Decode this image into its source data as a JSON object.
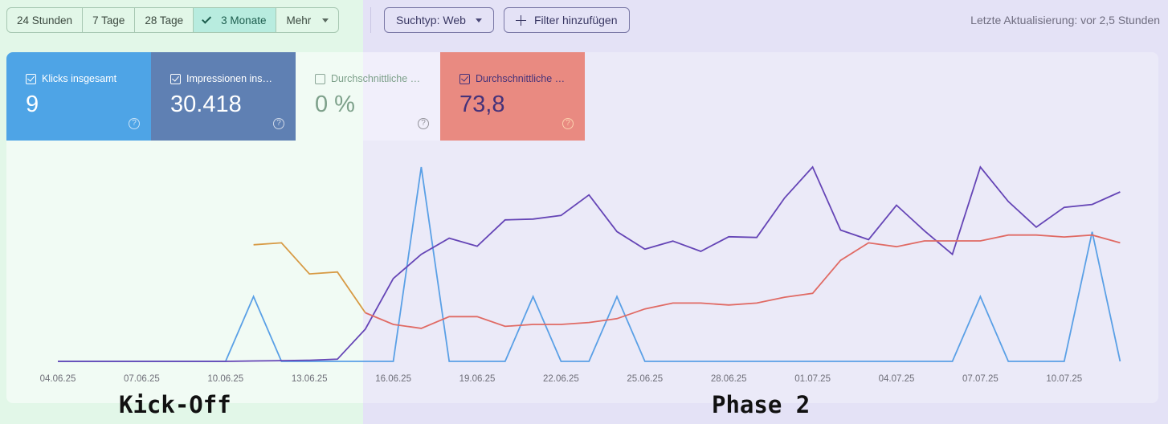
{
  "toolbar": {
    "ranges": [
      {
        "label": "24 Stunden",
        "active": false
      },
      {
        "label": "7 Tage",
        "active": false
      },
      {
        "label": "28 Tage",
        "active": false
      },
      {
        "label": "3 Monate",
        "active": true
      },
      {
        "label": "Mehr",
        "active": false
      }
    ],
    "search_type_label": "Suchtyp: Web",
    "add_filter_label": "Filter hinzufügen",
    "last_update": "Letzte Aktualisierung: vor 2,5 Stunden"
  },
  "metrics": [
    {
      "label": "Klicks insgesamt",
      "value": "9",
      "checked": true,
      "color": "#4ea4e6"
    },
    {
      "label": "Impressionen ins…",
      "value": "30.418",
      "checked": true,
      "color": "#5f80b3"
    },
    {
      "label": "Durchschnittliche …",
      "value": "0 %",
      "checked": false,
      "color": "#eaf8f0"
    },
    {
      "label": "Durchschnittliche …",
      "value": "73,8",
      "checked": true,
      "color": "#e98a81"
    }
  ],
  "phases": {
    "kickoff": "Kick-Off",
    "phase2": "Phase 2"
  },
  "chart_data": {
    "type": "line",
    "x": [
      "04.06.25",
      "05.06.25",
      "06.06.25",
      "07.06.25",
      "08.06.25",
      "09.06.25",
      "10.06.25",
      "11.06.25",
      "12.06.25",
      "13.06.25",
      "14.06.25",
      "15.06.25",
      "16.06.25",
      "17.06.25",
      "18.06.25",
      "19.06.25",
      "20.06.25",
      "21.06.25",
      "22.06.25",
      "23.06.25",
      "24.06.25",
      "25.06.25",
      "26.06.25",
      "27.06.25",
      "28.06.25",
      "29.06.25",
      "30.06.25",
      "01.07.25",
      "02.07.25",
      "03.07.25",
      "04.07.25",
      "05.07.25",
      "06.07.25",
      "07.07.25",
      "08.07.25",
      "09.07.25",
      "10.07.25",
      "11.07.25",
      "12.07.25"
    ],
    "x_tick_labels": [
      "04.06.25",
      "07.06.25",
      "10.06.25",
      "13.06.25",
      "16.06.25",
      "19.06.25",
      "22.06.25",
      "25.06.25",
      "28.06.25",
      "01.07.25",
      "04.07.25",
      "07.07.25",
      "10.07.25"
    ],
    "series": [
      {
        "key": "clicks",
        "color": "#5aa0e6",
        "values": [
          0,
          0,
          0,
          0,
          0,
          0,
          0,
          1,
          0,
          0,
          0,
          0,
          0,
          3,
          0,
          0,
          0,
          1,
          0,
          0,
          1,
          0,
          0,
          0,
          0,
          0,
          0,
          0,
          0,
          0,
          0,
          0,
          0,
          1,
          0,
          0,
          0,
          2,
          0
        ]
      },
      {
        "key": "impressions",
        "color": "#6545b6",
        "values": [
          0,
          0,
          0,
          0,
          0,
          0,
          0,
          5,
          10,
          15,
          30,
          440,
          1130,
          1460,
          1680,
          1570,
          1930,
          1940,
          1990,
          2270,
          1770,
          1530,
          1640,
          1500,
          1700,
          1690,
          2230,
          2650,
          1790,
          1660,
          2130,
          1780,
          1460,
          2650,
          2180,
          1830,
          2100,
          2140,
          2310
        ]
      },
      {
        "key": "ctr",
        "color": "#d79a44",
        "values": [
          null,
          null,
          null,
          null,
          null,
          null,
          null,
          60,
          61,
          45,
          46,
          25,
          null,
          null,
          null,
          null,
          null,
          null,
          null,
          null,
          null,
          null,
          null,
          null,
          null,
          null,
          null,
          null,
          null,
          null,
          null,
          null,
          null,
          null,
          null,
          null,
          null,
          null,
          null
        ]
      },
      {
        "key": "position",
        "color": "#e06a64",
        "values": [
          null,
          null,
          null,
          null,
          null,
          null,
          null,
          null,
          null,
          null,
          null,
          25,
          19,
          17,
          23,
          23,
          18,
          19,
          19,
          20,
          22,
          27,
          30,
          30,
          29,
          30,
          33,
          35,
          52,
          61,
          59,
          62,
          62,
          62,
          65,
          65,
          64,
          65,
          61
        ]
      }
    ],
    "grid": false
  }
}
